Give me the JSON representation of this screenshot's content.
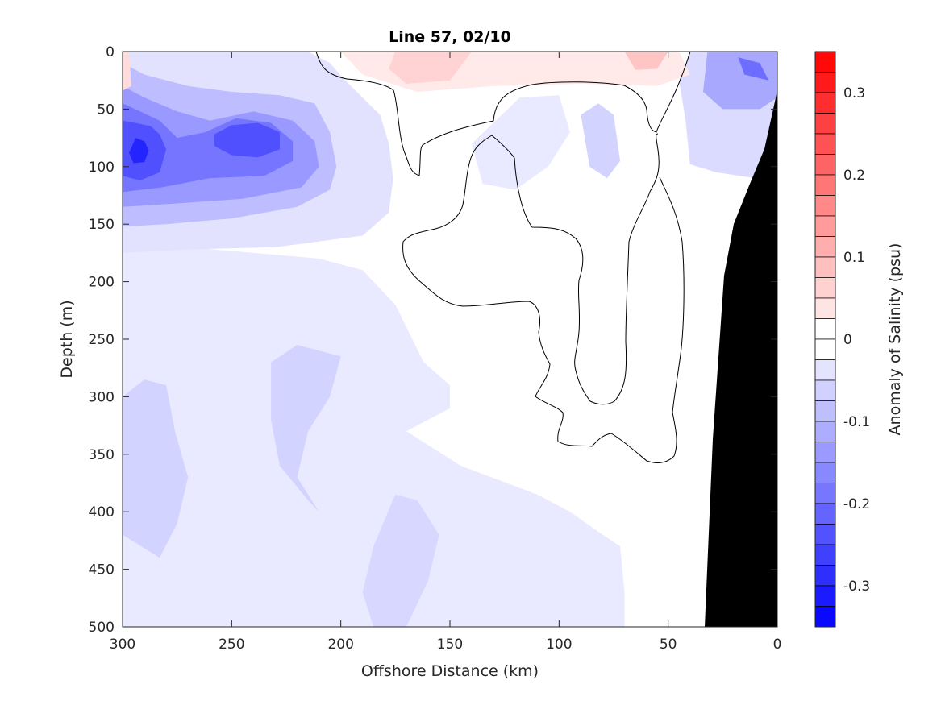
{
  "chart_data": {
    "type": "heatmap",
    "title": "Line 57, 02/10",
    "xlabel": "Offshore Distance (km)",
    "ylabel": "Depth (m)",
    "colorbar_label": "Anomaly of Salinity (psu)",
    "x_ticks": [
      300,
      250,
      200,
      150,
      100,
      50,
      0
    ],
    "y_ticks": [
      0,
      50,
      100,
      150,
      200,
      250,
      300,
      350,
      400,
      450,
      500
    ],
    "xlim": [
      300,
      0
    ],
    "ylim": [
      0,
      500
    ],
    "x_reversed": true,
    "y_reversed": true,
    "colorbar_ticks": [
      0.3,
      0.2,
      0.1,
      0,
      -0.1,
      -0.2,
      -0.3
    ],
    "colorbar_tick_labels": [
      "0.3",
      "0.2",
      "0.1",
      "0",
      "-0.1",
      "-0.2",
      "-0.3"
    ],
    "colorbar_range": [
      -0.35,
      0.35
    ],
    "colorbar_step": 0.025,
    "colormap": "blue-white-red",
    "zero_contour": true,
    "bathymetry_mask_color": "#000000",
    "features": [
      {
        "kind": "fresh_core",
        "x": 290,
        "y": 88,
        "value": -0.3
      },
      {
        "kind": "fresh_core",
        "x": 240,
        "y": 78,
        "value": -0.27
      },
      {
        "kind": "fresh_core",
        "x": 15,
        "y": 20,
        "value": -0.2
      },
      {
        "kind": "salty_core",
        "x": 160,
        "y": 18,
        "value": 0.09
      },
      {
        "kind": "salty_core",
        "x": 60,
        "y": 8,
        "value": 0.08
      },
      {
        "kind": "weak_fresh",
        "x": 82,
        "y": 80,
        "value": -0.05
      },
      {
        "kind": "weak_fresh",
        "x": 285,
        "y": 400,
        "value": -0.06
      },
      {
        "kind": "weak_fresh",
        "x": 220,
        "y": 340,
        "value": -0.06
      },
      {
        "kind": "weak_fresh",
        "x": 160,
        "y": 440,
        "value": -0.055
      }
    ]
  }
}
